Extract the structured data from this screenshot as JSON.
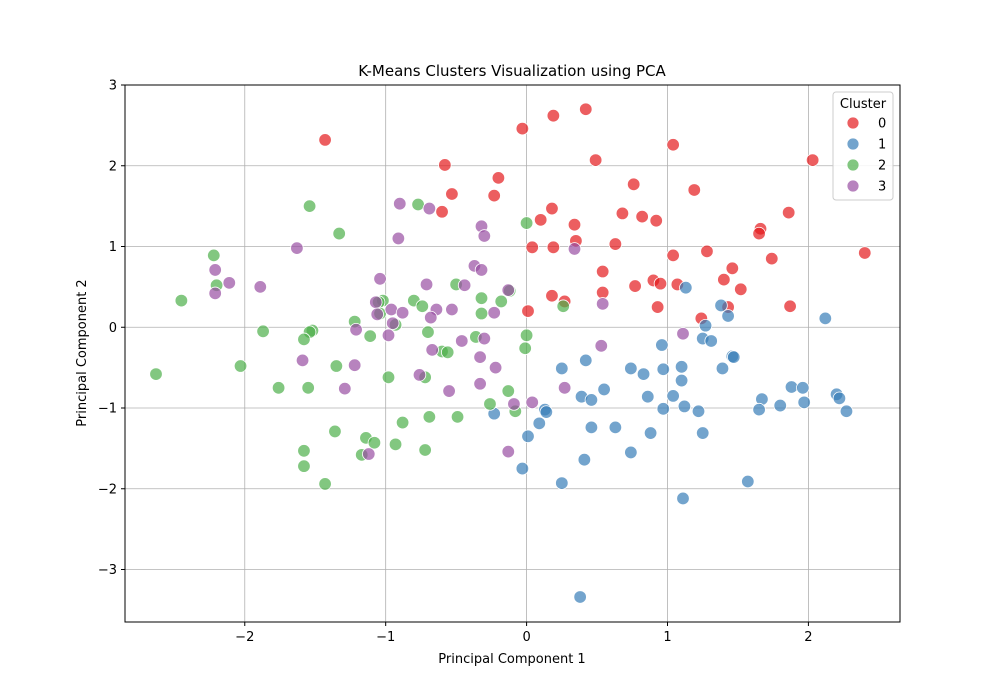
{
  "chart_data": {
    "type": "scatter",
    "title": "K-Means Clusters Visualization using PCA",
    "xlabel": "Principal Component 1",
    "ylabel": "Principal Component 2",
    "xlim": [
      -2.85,
      2.65
    ],
    "ylim": [
      -3.65,
      3.0
    ],
    "xticks": [
      -2,
      -1,
      0,
      1,
      2
    ],
    "yticks": [
      -3,
      -2,
      -1,
      0,
      1,
      2,
      3
    ],
    "grid": true,
    "legend": {
      "title": "Cluster",
      "position": "top-right"
    },
    "series": [
      {
        "name": "0",
        "color": "#e41a1c",
        "points": [
          [
            -1.43,
            2.32
          ],
          [
            0.42,
            2.7
          ],
          [
            0.19,
            2.62
          ],
          [
            -0.03,
            2.46
          ],
          [
            1.04,
            2.26
          ],
          [
            0.49,
            2.07
          ],
          [
            2.03,
            2.07
          ],
          [
            -0.58,
            2.01
          ],
          [
            -0.2,
            1.85
          ],
          [
            0.76,
            1.77
          ],
          [
            1.19,
            1.7
          ],
          [
            -0.53,
            1.65
          ],
          [
            -0.23,
            1.63
          ],
          [
            0.18,
            1.47
          ],
          [
            -0.6,
            1.43
          ],
          [
            0.68,
            1.41
          ],
          [
            1.86,
            1.42
          ],
          [
            0.82,
            1.37
          ],
          [
            0.1,
            1.33
          ],
          [
            0.92,
            1.32
          ],
          [
            0.34,
            1.27
          ],
          [
            1.66,
            1.22
          ],
          [
            1.65,
            1.16
          ],
          [
            0.35,
            1.07
          ],
          [
            0.63,
            1.03
          ],
          [
            0.04,
            0.99
          ],
          [
            0.19,
            0.99
          ],
          [
            1.28,
            0.94
          ],
          [
            2.4,
            0.92
          ],
          [
            1.04,
            0.89
          ],
          [
            1.74,
            0.85
          ],
          [
            1.46,
            0.73
          ],
          [
            0.54,
            0.69
          ],
          [
            1.4,
            0.59
          ],
          [
            0.9,
            0.58
          ],
          [
            0.95,
            0.54
          ],
          [
            1.07,
            0.53
          ],
          [
            0.77,
            0.51
          ],
          [
            1.52,
            0.47
          ],
          [
            0.54,
            0.43
          ],
          [
            0.18,
            0.39
          ],
          [
            0.27,
            0.32
          ],
          [
            0.93,
            0.25
          ],
          [
            1.43,
            0.25
          ],
          [
            1.87,
            0.26
          ],
          [
            0.01,
            0.2
          ],
          [
            1.24,
            0.11
          ]
        ]
      },
      {
        "name": "1",
        "color": "#377eb8",
        "points": [
          [
            1.13,
            0.49
          ],
          [
            1.38,
            0.27
          ],
          [
            2.12,
            0.11
          ],
          [
            1.43,
            0.14
          ],
          [
            1.27,
            0.02
          ],
          [
            1.25,
            -0.14
          ],
          [
            1.31,
            -0.17
          ],
          [
            0.96,
            -0.22
          ],
          [
            1.46,
            -0.36
          ],
          [
            1.47,
            -0.37
          ],
          [
            0.42,
            -0.41
          ],
          [
            1.1,
            -0.49
          ],
          [
            0.25,
            -0.51
          ],
          [
            0.74,
            -0.51
          ],
          [
            0.97,
            -0.52
          ],
          [
            1.39,
            -0.51
          ],
          [
            0.83,
            -0.58
          ],
          [
            1.1,
            -0.66
          ],
          [
            0.55,
            -0.77
          ],
          [
            1.88,
            -0.74
          ],
          [
            1.96,
            -0.75
          ],
          [
            0.39,
            -0.86
          ],
          [
            0.86,
            -0.86
          ],
          [
            1.04,
            -0.85
          ],
          [
            2.2,
            -0.83
          ],
          [
            1.67,
            -0.89
          ],
          [
            2.22,
            -0.88
          ],
          [
            0.46,
            -0.9
          ],
          [
            1.97,
            -0.93
          ],
          [
            1.8,
            -0.97
          ],
          [
            1.12,
            -0.98
          ],
          [
            0.97,
            -1.01
          ],
          [
            1.65,
            -1.02
          ],
          [
            0.13,
            -1.02
          ],
          [
            1.22,
            -1.04
          ],
          [
            0.14,
            -1.05
          ],
          [
            2.27,
            -1.04
          ],
          [
            -0.23,
            -1.07
          ],
          [
            0.09,
            -1.19
          ],
          [
            0.46,
            -1.24
          ],
          [
            0.63,
            -1.24
          ],
          [
            1.25,
            -1.31
          ],
          [
            0.88,
            -1.31
          ],
          [
            0.01,
            -1.35
          ],
          [
            0.74,
            -1.55
          ],
          [
            0.41,
            -1.64
          ],
          [
            -0.03,
            -1.75
          ],
          [
            1.57,
            -1.91
          ],
          [
            0.25,
            -1.93
          ],
          [
            1.11,
            -2.12
          ],
          [
            0.38,
            -3.34
          ]
        ]
      },
      {
        "name": "2",
        "color": "#4daf4a",
        "points": [
          [
            -0.77,
            1.52
          ],
          [
            -1.54,
            1.5
          ],
          [
            0.0,
            1.29
          ],
          [
            -1.33,
            1.16
          ],
          [
            -2.22,
            0.89
          ],
          [
            -2.2,
            0.52
          ],
          [
            -0.5,
            0.53
          ],
          [
            -0.12,
            0.45
          ],
          [
            -2.45,
            0.33
          ],
          [
            -1.02,
            0.33
          ],
          [
            -0.8,
            0.33
          ],
          [
            -0.32,
            0.36
          ],
          [
            -1.05,
            0.31
          ],
          [
            -0.18,
            0.32
          ],
          [
            -0.74,
            0.26
          ],
          [
            0.26,
            0.26
          ],
          [
            -1.04,
            0.17
          ],
          [
            -0.32,
            0.17
          ],
          [
            -1.22,
            0.07
          ],
          [
            -0.93,
            0.03
          ],
          [
            -1.52,
            -0.04
          ],
          [
            -1.87,
            -0.05
          ],
          [
            -1.54,
            -0.06
          ],
          [
            -0.7,
            -0.06
          ],
          [
            -0.0,
            -0.1
          ],
          [
            -1.11,
            -0.11
          ],
          [
            -0.36,
            -0.12
          ],
          [
            -1.58,
            -0.15
          ],
          [
            -0.01,
            -0.26
          ],
          [
            -0.6,
            -0.3
          ],
          [
            -0.56,
            -0.31
          ],
          [
            -2.03,
            -0.48
          ],
          [
            -1.35,
            -0.48
          ],
          [
            -2.63,
            -0.58
          ],
          [
            -0.98,
            -0.62
          ],
          [
            -0.72,
            -0.62
          ],
          [
            -1.76,
            -0.75
          ],
          [
            -1.55,
            -0.75
          ],
          [
            -0.13,
            -0.79
          ],
          [
            -0.26,
            -0.95
          ],
          [
            -0.08,
            -1.04
          ],
          [
            -0.69,
            -1.11
          ],
          [
            -0.49,
            -1.11
          ],
          [
            -0.88,
            -1.18
          ],
          [
            -1.36,
            -1.29
          ],
          [
            -1.14,
            -1.37
          ],
          [
            -1.08,
            -1.43
          ],
          [
            -0.93,
            -1.45
          ],
          [
            -0.72,
            -1.52
          ],
          [
            -1.58,
            -1.53
          ],
          [
            -1.17,
            -1.58
          ],
          [
            -1.58,
            -1.72
          ],
          [
            -1.43,
            -1.94
          ]
        ]
      },
      {
        "name": "3",
        "color": "#984ea3",
        "points": [
          [
            -0.9,
            1.53
          ],
          [
            -0.69,
            1.47
          ],
          [
            -0.32,
            1.25
          ],
          [
            -0.3,
            1.13
          ],
          [
            -0.91,
            1.1
          ],
          [
            0.34,
            0.97
          ],
          [
            -1.63,
            0.98
          ],
          [
            -0.37,
            0.76
          ],
          [
            -2.21,
            0.71
          ],
          [
            -0.32,
            0.71
          ],
          [
            -1.04,
            0.6
          ],
          [
            -2.11,
            0.55
          ],
          [
            -0.71,
            0.53
          ],
          [
            -0.44,
            0.52
          ],
          [
            -1.89,
            0.5
          ],
          [
            -0.13,
            0.46
          ],
          [
            -2.21,
            0.42
          ],
          [
            -1.07,
            0.31
          ],
          [
            0.54,
            0.29
          ],
          [
            -0.96,
            0.22
          ],
          [
            -0.64,
            0.22
          ],
          [
            -0.53,
            0.22
          ],
          [
            -0.88,
            0.18
          ],
          [
            -0.23,
            0.18
          ],
          [
            -1.06,
            0.16
          ],
          [
            -0.68,
            0.12
          ],
          [
            -0.95,
            0.05
          ],
          [
            -1.21,
            -0.03
          ],
          [
            -0.98,
            -0.1
          ],
          [
            1.11,
            -0.08
          ],
          [
            -0.3,
            -0.14
          ],
          [
            -0.46,
            -0.17
          ],
          [
            0.53,
            -0.23
          ],
          [
            -0.67,
            -0.28
          ],
          [
            -1.59,
            -0.41
          ],
          [
            -0.33,
            -0.37
          ],
          [
            -1.22,
            -0.47
          ],
          [
            -0.22,
            -0.5
          ],
          [
            -0.76,
            -0.59
          ],
          [
            -0.33,
            -0.7
          ],
          [
            -1.29,
            -0.76
          ],
          [
            0.27,
            -0.75
          ],
          [
            -0.55,
            -0.79
          ],
          [
            0.04,
            -0.93
          ],
          [
            -0.09,
            -0.95
          ],
          [
            -1.12,
            -1.57
          ],
          [
            -0.13,
            -1.54
          ]
        ]
      }
    ]
  }
}
